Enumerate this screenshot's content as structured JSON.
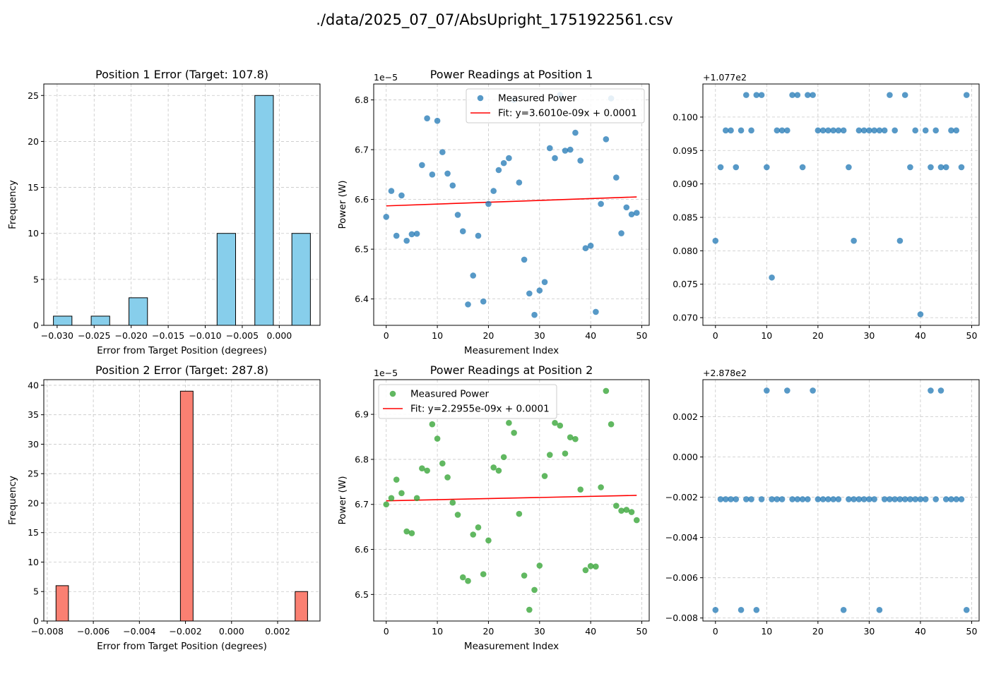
{
  "figure": {
    "suptitle": "./data/2025_07_07/AbsUpright_1751922561.csv"
  },
  "chart_data": [
    {
      "id": "hist1",
      "type": "bar",
      "title": "Position 1 Error (Target: 107.8)",
      "xlabel": "Error from Target Position (degrees)",
      "ylabel": "Frequency",
      "bar_color": "#87ceeb",
      "bins": [
        {
          "x0": -0.0305,
          "x1": -0.028,
          "count": 1
        },
        {
          "x0": -0.0254,
          "x1": -0.0229,
          "count": 1
        },
        {
          "x0": -0.0203,
          "x1": -0.0178,
          "count": 3
        },
        {
          "x0": -0.0084,
          "x1": -0.0059,
          "count": 10
        },
        {
          "x0": -0.0033,
          "x1": -0.0008,
          "count": 25
        },
        {
          "x0": 0.0017,
          "x1": 0.0042,
          "count": 10
        }
      ],
      "xlim": [
        -0.0318,
        0.0055
      ],
      "ylim": [
        0,
        26.25
      ],
      "xticks": [
        -0.03,
        -0.025,
        -0.02,
        -0.015,
        -0.01,
        -0.005,
        0.0
      ],
      "xticklabels": [
        "−0.030",
        "−0.025",
        "−0.020",
        "−0.015",
        "−0.010",
        "−0.005",
        "0.000"
      ],
      "yticks": [
        0,
        5,
        10,
        15,
        20,
        25
      ],
      "yticklabels": [
        "0",
        "5",
        "10",
        "15",
        "20",
        "25"
      ]
    },
    {
      "id": "scatter1",
      "type": "scatter",
      "title": "Power Readings at Position 1",
      "xlabel": "Measurement Index",
      "ylabel": "Power (W)",
      "offset_label": "1e−5",
      "point_color": "#1f77b4",
      "x": [
        0,
        1,
        2,
        3,
        4,
        5,
        6,
        7,
        8,
        9,
        10,
        11,
        12,
        13,
        14,
        15,
        16,
        17,
        18,
        19,
        20,
        21,
        22,
        23,
        24,
        25,
        26,
        27,
        28,
        29,
        30,
        31,
        32,
        33,
        34,
        35,
        36,
        37,
        38,
        39,
        40,
        41,
        42,
        43,
        44,
        45,
        46,
        47,
        48,
        49
      ],
      "y": [
        6.565,
        6.617,
        6.527,
        6.608,
        6.517,
        6.53,
        6.531,
        6.669,
        6.763,
        6.65,
        6.758,
        6.695,
        6.652,
        6.628,
        6.569,
        6.536,
        6.389,
        6.447,
        6.527,
        6.395,
        6.591,
        6.617,
        6.659,
        6.673,
        6.683,
        6.8,
        6.634,
        6.479,
        6.411,
        6.368,
        6.417,
        6.434,
        6.703,
        6.683,
        6.81,
        6.698,
        6.7,
        6.734,
        6.678,
        6.502,
        6.507,
        6.374,
        6.591,
        6.721,
        6.803,
        6.644,
        6.532,
        6.584,
        6.57,
        6.573
      ],
      "fit": {
        "x": [
          0,
          49
        ],
        "y": [
          6.587,
          6.605
        ],
        "color": "#ff0000"
      },
      "legend": {
        "location": "upper right",
        "entries": [
          "Measured Power",
          "Fit: y=3.6010e-09x + 0.0001"
        ]
      },
      "xlim": [
        -2.45,
        51.45
      ],
      "ylim": [
        6.347,
        6.832
      ],
      "xticks": [
        0,
        10,
        20,
        30,
        40,
        50
      ],
      "xticklabels": [
        "0",
        "10",
        "20",
        "30",
        "40",
        "50"
      ],
      "yticks": [
        6.4,
        6.5,
        6.6,
        6.7,
        6.8
      ],
      "yticklabels": [
        "6.4",
        "6.5",
        "6.6",
        "6.7",
        "6.8"
      ]
    },
    {
      "id": "pos1",
      "type": "scatter",
      "title": "",
      "xlabel": "",
      "ylabel": "",
      "offset_label": "+1.077e2",
      "point_color": "#1f77b4",
      "x": [
        0,
        1,
        2,
        3,
        4,
        5,
        6,
        7,
        8,
        9,
        10,
        11,
        12,
        13,
        14,
        15,
        16,
        17,
        18,
        19,
        20,
        21,
        22,
        23,
        24,
        25,
        26,
        27,
        28,
        29,
        30,
        31,
        32,
        33,
        34,
        35,
        36,
        37,
        38,
        39,
        40,
        41,
        42,
        43,
        44,
        45,
        46,
        47,
        48,
        49
      ],
      "y": [
        0.0815,
        0.0925,
        0.098,
        0.098,
        0.0925,
        0.098,
        0.1033,
        0.098,
        0.1033,
        0.1033,
        0.0925,
        0.076,
        0.098,
        0.098,
        0.098,
        0.1033,
        0.1033,
        0.0925,
        0.1033,
        0.1033,
        0.098,
        0.098,
        0.098,
        0.098,
        0.098,
        0.098,
        0.0925,
        0.0815,
        0.098,
        0.098,
        0.098,
        0.098,
        0.098,
        0.098,
        0.1033,
        0.098,
        0.0815,
        0.1033,
        0.0925,
        0.098,
        0.0705,
        0.098,
        0.0925,
        0.098,
        0.0925,
        0.0925,
        0.098,
        0.098,
        0.0925,
        0.1033
      ],
      "xlim": [
        -2.45,
        51.45
      ],
      "ylim": [
        0.06885,
        0.10495
      ],
      "xticks": [
        0,
        10,
        20,
        30,
        40,
        50
      ],
      "xticklabels": [
        "0",
        "10",
        "20",
        "30",
        "40",
        "50"
      ],
      "yticks": [
        0.07,
        0.075,
        0.08,
        0.085,
        0.09,
        0.095,
        0.1
      ],
      "yticklabels": [
        "0.070",
        "0.075",
        "0.080",
        "0.085",
        "0.090",
        "0.095",
        "0.100"
      ]
    },
    {
      "id": "hist2",
      "type": "bar",
      "title": "Position 2 Error (Target: 287.8)",
      "xlabel": "Error from Target Position (degrees)",
      "ylabel": "Frequency",
      "bar_color": "#fa8072",
      "bins": [
        {
          "x0": -0.00762,
          "x1": -0.00708,
          "count": 6
        },
        {
          "x0": -0.00222,
          "x1": -0.00167,
          "count": 39
        },
        {
          "x0": 0.00276,
          "x1": 0.0033,
          "count": 5
        }
      ],
      "xlim": [
        -0.00815,
        0.00384
      ],
      "ylim": [
        0,
        40.95
      ],
      "xticks": [
        -0.008,
        -0.006,
        -0.004,
        -0.002,
        0.0,
        0.002
      ],
      "xticklabels": [
        "−0.008",
        "−0.006",
        "−0.004",
        "−0.002",
        "0.000",
        "0.002"
      ],
      "yticks": [
        0,
        5,
        10,
        15,
        20,
        25,
        30,
        35,
        40
      ],
      "yticklabels": [
        "0",
        "5",
        "10",
        "15",
        "20",
        "25",
        "30",
        "35",
        "40"
      ]
    },
    {
      "id": "scatter2",
      "type": "scatter",
      "title": "Power Readings at Position 2",
      "xlabel": "Measurement Index",
      "ylabel": "Power (W)",
      "offset_label": "1e−5",
      "point_color": "#2ca02c",
      "x": [
        0,
        1,
        2,
        3,
        4,
        5,
        6,
        7,
        8,
        9,
        10,
        11,
        12,
        13,
        14,
        15,
        16,
        17,
        18,
        19,
        20,
        21,
        22,
        23,
        24,
        25,
        26,
        27,
        28,
        29,
        30,
        31,
        32,
        33,
        34,
        35,
        36,
        37,
        38,
        39,
        40,
        41,
        42,
        43,
        44,
        45,
        46,
        47,
        48,
        49
      ],
      "y": [
        6.7,
        6.714,
        6.755,
        6.725,
        6.64,
        6.636,
        6.714,
        6.78,
        6.775,
        6.878,
        6.846,
        6.791,
        6.76,
        6.704,
        6.677,
        6.538,
        6.53,
        6.633,
        6.649,
        6.545,
        6.62,
        6.782,
        6.775,
        6.805,
        6.881,
        6.859,
        6.679,
        6.542,
        6.466,
        6.51,
        6.564,
        6.763,
        6.81,
        6.881,
        6.875,
        6.813,
        6.849,
        6.845,
        6.733,
        6.554,
        6.563,
        6.562,
        6.738,
        6.952,
        6.878,
        6.697,
        6.686,
        6.688,
        6.683,
        6.665
      ],
      "fit": {
        "x": [
          0,
          49
        ],
        "y": [
          6.708,
          6.72
        ],
        "color": "#ff0000"
      },
      "legend": {
        "location": "upper left",
        "entries": [
          "Measured Power",
          "Fit: y=2.2955e-09x + 0.0001"
        ]
      },
      "xlim": [
        -2.45,
        51.45
      ],
      "ylim": [
        6.441,
        6.977
      ],
      "xticks": [
        0,
        10,
        20,
        30,
        40,
        50
      ],
      "xticklabels": [
        "0",
        "10",
        "20",
        "30",
        "40",
        "50"
      ],
      "yticks": [
        6.5,
        6.6,
        6.7,
        6.8,
        6.9
      ],
      "yticklabels": [
        "6.5",
        "6.6",
        "6.7",
        "6.8",
        "6.9"
      ]
    },
    {
      "id": "pos2",
      "type": "scatter",
      "title": "",
      "xlabel": "",
      "ylabel": "",
      "offset_label": "+2.878e2",
      "point_color": "#1f77b4",
      "x": [
        0,
        1,
        2,
        3,
        4,
        5,
        6,
        7,
        8,
        9,
        10,
        11,
        12,
        13,
        14,
        15,
        16,
        17,
        18,
        19,
        20,
        21,
        22,
        23,
        24,
        25,
        26,
        27,
        28,
        29,
        30,
        31,
        32,
        33,
        34,
        35,
        36,
        37,
        38,
        39,
        40,
        41,
        42,
        43,
        44,
        45,
        46,
        47,
        48,
        49
      ],
      "y": [
        -0.0076,
        -0.0021,
        -0.0021,
        -0.0021,
        -0.0021,
        -0.0076,
        -0.0021,
        -0.0021,
        -0.0076,
        -0.0021,
        0.0033,
        -0.0021,
        -0.0021,
        -0.0021,
        0.0033,
        -0.0021,
        -0.0021,
        -0.0021,
        -0.0021,
        0.0033,
        -0.0021,
        -0.0021,
        -0.0021,
        -0.0021,
        -0.0021,
        -0.0076,
        -0.0021,
        -0.0021,
        -0.0021,
        -0.0021,
        -0.0021,
        -0.0021,
        -0.0076,
        -0.0021,
        -0.0021,
        -0.0021,
        -0.0021,
        -0.0021,
        -0.0021,
        -0.0021,
        -0.0021,
        -0.0021,
        0.0033,
        -0.0021,
        0.0033,
        -0.0021,
        -0.0021,
        -0.0021,
        -0.0021,
        -0.0076
      ],
      "xlim": [
        -2.45,
        51.45
      ],
      "ylim": [
        -0.00815,
        0.00384
      ],
      "xticks": [
        0,
        10,
        20,
        30,
        40,
        50
      ],
      "xticklabels": [
        "0",
        "10",
        "20",
        "30",
        "40",
        "50"
      ],
      "yticks": [
        -0.008,
        -0.006,
        -0.004,
        -0.002,
        0.0,
        0.002
      ],
      "yticklabels": [
        "−0.008",
        "−0.006",
        "−0.004",
        "−0.002",
        "0.000",
        "0.002"
      ]
    }
  ]
}
